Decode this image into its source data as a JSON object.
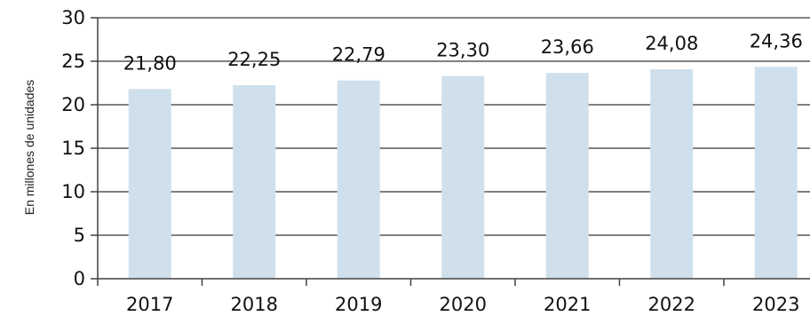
{
  "chart_data": {
    "type": "bar",
    "title": "",
    "xlabel": "",
    "ylabel": "En millones de unidades",
    "categories": [
      "2017",
      "2018",
      "2019",
      "2020",
      "2021",
      "2022",
      "2023"
    ],
    "values": [
      21.8,
      22.25,
      22.79,
      23.3,
      23.66,
      24.08,
      24.36
    ],
    "data_labels": [
      "21,80",
      "22,25",
      "22,79",
      "23,30",
      "23,66",
      "24,08",
      "24,36"
    ],
    "yticks": [
      0,
      5,
      10,
      15,
      20,
      25,
      30
    ],
    "ylim": [
      0,
      30
    ],
    "grid": true,
    "colors": {
      "bar": "#cfe0ec",
      "grid": "#808080",
      "axis": "#404040"
    }
  }
}
